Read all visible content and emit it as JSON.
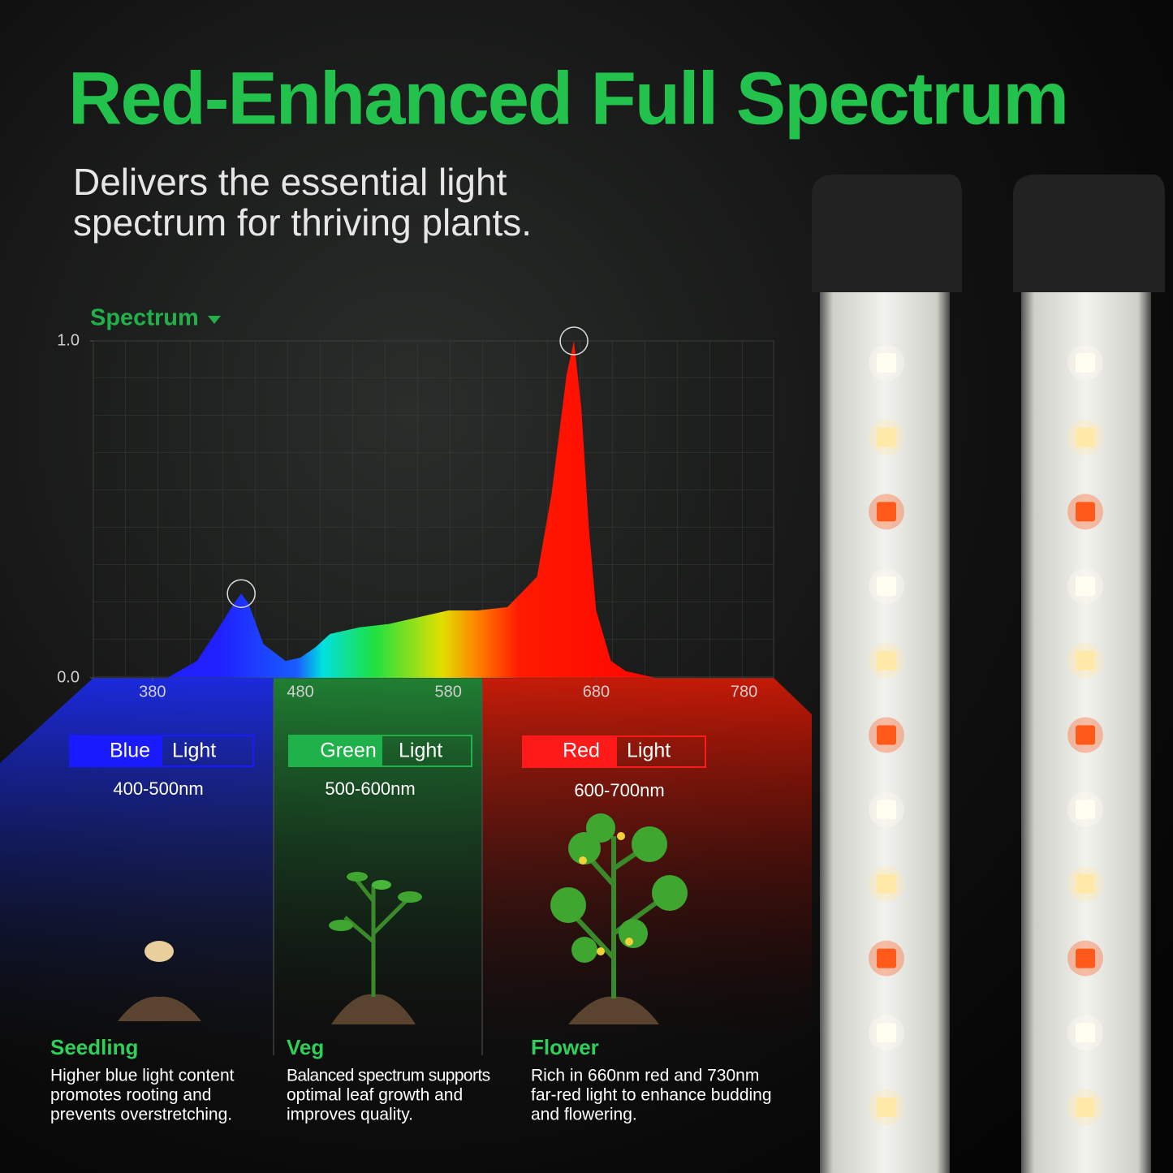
{
  "header": {
    "title": "Red-Enhanced Full Spectrum",
    "subtitle_lines": [
      "Delivers the essential light",
      "spectrum for thriving plants."
    ]
  },
  "chart_data": {
    "type": "area",
    "title": "Spectrum",
    "x": [
      390,
      410,
      425,
      435,
      440,
      445,
      455,
      470,
      480,
      490,
      500,
      520,
      540,
      560,
      580,
      600,
      620,
      640,
      650,
      660,
      665,
      670,
      675,
      680,
      690,
      700,
      720,
      740
    ],
    "values": [
      0,
      0.05,
      0.15,
      0.22,
      0.25,
      0.22,
      0.1,
      0.05,
      0.06,
      0.09,
      0.13,
      0.15,
      0.16,
      0.18,
      0.2,
      0.2,
      0.21,
      0.3,
      0.55,
      0.9,
      1.0,
      0.8,
      0.45,
      0.2,
      0.05,
      0.02,
      0,
      0
    ],
    "xlim": [
      340,
      800
    ],
    "ylim": [
      0,
      1
    ],
    "xticks": [
      380,
      480,
      580,
      680,
      780
    ],
    "yticks": [
      {
        "value": 0,
        "label": "0.0"
      },
      {
        "value": 1,
        "label": "1.0"
      }
    ]
  },
  "bands": [
    {
      "color": "Blue",
      "label": "Light",
      "range": "400-500nm"
    },
    {
      "color": "Green",
      "label": "Light",
      "range": "500-600nm"
    },
    {
      "color": "Red",
      "label": "Light",
      "range": "600-700nm"
    }
  ],
  "stages": [
    {
      "name": "Seedling",
      "lines": [
        "Higher blue light content",
        "promotes rooting and",
        "prevents overstretching."
      ]
    },
    {
      "name": "Veg",
      "lines": [
        "Balanced spectrum supports",
        "optimal leaf growth and",
        "improves quality."
      ]
    },
    {
      "name": "Flower",
      "lines": [
        "Rich in 660nm red and 730nm",
        "far-red light to enhance budding",
        "and flowering."
      ]
    }
  ]
}
